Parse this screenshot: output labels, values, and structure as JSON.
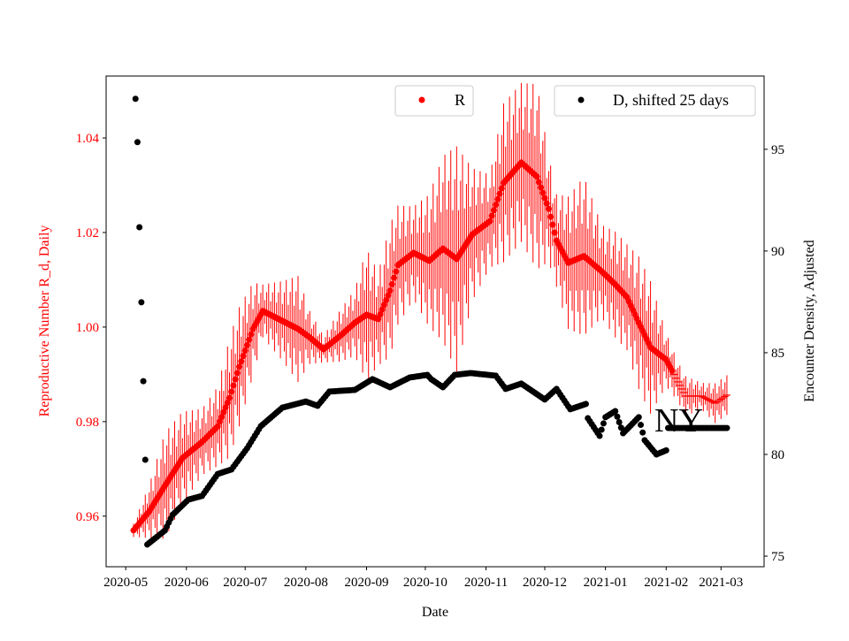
{
  "chart_data": {
    "type": "scatter",
    "title": "",
    "xlabel": "Date",
    "ylabel_left": "Reproductive Number R_d, Daily",
    "ylabel_right": "Encounter Density, Adjusted",
    "annotation": "NY",
    "x_ticks": [
      "2020-05",
      "2020-06",
      "2020-07",
      "2020-08",
      "2020-09",
      "2020-10",
      "2020-11",
      "2020-12",
      "2021-01",
      "2021-02",
      "2021-03"
    ],
    "xlim": [
      "2020-04-21",
      "2021-03-23"
    ],
    "y_left_ticks": [
      "0.96",
      "0.98",
      "1.00",
      "1.02",
      "1.04"
    ],
    "y_left_lim": [
      0.9493,
      1.0531
    ],
    "y_right_ticks": [
      "75",
      "80",
      "85",
      "90",
      "95"
    ],
    "y_right_lim": [
      74.48,
      98.6
    ],
    "grid": false,
    "colors": {
      "R": "#ff0000",
      "D": "#000000"
    },
    "series": [
      {
        "name": "R",
        "legend_label": "R",
        "legend_position": "top-center",
        "axis": "left",
        "points": [
          [
            "2020-05-05",
            0.957,
            0.001
          ],
          [
            "2020-05-13",
            0.961,
            0.004
          ],
          [
            "2020-05-21",
            0.9664,
            0.008
          ],
          [
            "2020-05-30",
            0.9723,
            0.007
          ],
          [
            "2020-06-09",
            0.9757,
            0.005
          ],
          [
            "2020-06-17",
            0.979,
            0.006
          ],
          [
            "2020-06-23",
            0.985,
            0.009
          ],
          [
            "2020-06-28",
            0.9916,
            0.009
          ],
          [
            "2020-07-05",
            0.9996,
            0.007
          ],
          [
            "2020-07-10",
            1.0034,
            0.004
          ],
          [
            "2020-07-20",
            1.0013,
            0.006
          ],
          [
            "2020-07-28",
            0.9996,
            0.008
          ],
          [
            "2020-08-03",
            0.9978,
            0.004
          ],
          [
            "2020-08-10",
            0.9953,
            0.002
          ],
          [
            "2020-08-19",
            0.9983,
            0.004
          ],
          [
            "2020-08-26",
            1.0009,
            0.005
          ],
          [
            "2020-09-01",
            1.0026,
            0.01
          ],
          [
            "2020-09-07",
            1.0017,
            0.007
          ],
          [
            "2020-09-13",
            1.0077,
            0.01
          ],
          [
            "2020-09-17",
            1.0131,
            0.009
          ],
          [
            "2020-09-25",
            1.0157,
            0.007
          ],
          [
            "2020-10-03",
            1.014,
            0.01
          ],
          [
            "2020-10-10",
            1.0166,
            0.014
          ],
          [
            "2020-10-17",
            1.0144,
            0.017
          ],
          [
            "2020-10-25",
            1.0196,
            0.01
          ],
          [
            "2020-11-03",
            1.0224,
            0.007
          ],
          [
            "2020-11-10",
            1.0305,
            0.012
          ],
          [
            "2020-11-19",
            1.0348,
            0.012
          ],
          [
            "2020-11-27",
            1.0318,
            0.014
          ],
          [
            "2020-12-03",
            1.025,
            0.008
          ],
          [
            "2020-12-07",
            1.0183,
            0.007
          ],
          [
            "2020-12-13",
            1.0136,
            0.01
          ],
          [
            "2020-12-21",
            1.015,
            0.012
          ],
          [
            "2020-12-30",
            1.0118,
            0.007
          ],
          [
            "2021-01-06",
            1.009,
            0.008
          ],
          [
            "2021-01-12",
            1.0063,
            0.008
          ],
          [
            "2021-01-18",
            1.0009,
            0.01
          ],
          [
            "2021-01-24",
            0.9957,
            0.01
          ],
          [
            "2021-02-01",
            0.9931,
            0.004
          ],
          [
            "2021-02-07",
            0.9884,
            0.003
          ],
          [
            "2021-02-11",
            0.9854,
            0.003
          ],
          [
            "2021-02-19",
            0.9854,
            0.002
          ],
          [
            "2021-02-26",
            0.9839,
            0.003
          ],
          [
            "2021-03-04",
            0.9856,
            0.003
          ]
        ]
      },
      {
        "name": "D",
        "legend_label": "D, shifted 25 days",
        "legend_position": "top-right",
        "axis": "right",
        "points": [
          [
            "2020-05-06",
            97.48
          ],
          [
            "2020-05-07",
            95.35
          ],
          [
            "2020-05-08",
            91.17
          ],
          [
            "2020-05-09",
            87.48
          ],
          [
            "2020-05-10",
            83.6
          ],
          [
            "2020-05-11",
            79.74
          ],
          [
            "2020-05-12",
            75.57
          ],
          [
            "2020-05-21",
            76.26
          ],
          [
            "2020-05-25",
            77.04
          ],
          [
            "2020-06-02",
            77.78
          ],
          [
            "2020-06-09",
            77.96
          ],
          [
            "2020-06-17",
            79.04
          ],
          [
            "2020-06-24",
            79.26
          ],
          [
            "2020-07-02",
            80.3
          ],
          [
            "2020-07-09",
            81.39
          ],
          [
            "2020-07-20",
            82.3
          ],
          [
            "2020-08-01",
            82.6
          ],
          [
            "2020-08-07",
            82.39
          ],
          [
            "2020-08-13",
            83.09
          ],
          [
            "2020-08-26",
            83.17
          ],
          [
            "2020-09-04",
            83.7
          ],
          [
            "2020-09-13",
            83.3
          ],
          [
            "2020-09-23",
            83.78
          ],
          [
            "2020-10-02",
            83.91
          ],
          [
            "2020-10-04",
            83.7
          ],
          [
            "2020-10-10",
            83.3
          ],
          [
            "2020-10-16",
            83.91
          ],
          [
            "2020-10-24",
            84.0
          ],
          [
            "2020-11-06",
            83.87
          ],
          [
            "2020-11-11",
            83.22
          ],
          [
            "2020-11-19",
            83.48
          ],
          [
            "2020-12-01",
            82.7
          ],
          [
            "2020-12-07",
            83.22
          ],
          [
            "2020-12-14",
            82.22
          ],
          [
            "2020-12-22",
            82.48
          ],
          [
            "2020-12-23",
            81.78
          ],
          [
            "2020-12-29",
            80.91
          ],
          [
            "2021-01-01",
            81.83
          ],
          [
            "2021-01-06",
            82.13
          ],
          [
            "2021-01-10",
            81.04
          ],
          [
            "2021-01-18",
            81.83
          ],
          [
            "2021-01-21",
            80.7
          ],
          [
            "2021-01-27",
            80.0
          ],
          [
            "2021-02-01",
            80.2
          ],
          [
            "2021-02-02",
            81.3
          ],
          [
            "2021-03-04",
            81.3
          ]
        ]
      }
    ]
  }
}
